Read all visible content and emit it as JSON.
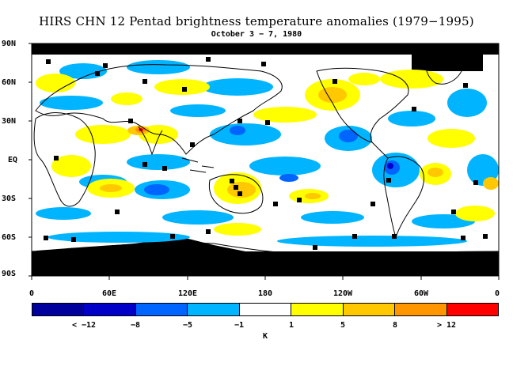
{
  "title": "HIRS CHN 12 Pentad brightness temperature anomalies (1979−1995)",
  "subtitle": "October 3 − 7, 1980",
  "y_labels": [
    "90N",
    "60N",
    "30N",
    "EQ",
    "30S",
    "60S",
    "90S"
  ],
  "x_labels": [
    "0",
    "60E",
    "120E",
    "180",
    "120W",
    "60W",
    "0"
  ],
  "colorbar": {
    "colors": [
      "#00009c",
      "#0000c8",
      "#0064ff",
      "#00b4ff",
      "#ffffff",
      "#ffff00",
      "#ffc800",
      "#ff9600",
      "#ff0000"
    ],
    "labels": [
      "< −12",
      "−8",
      "−5",
      "−1",
      "1",
      "5",
      "8",
      "> 12"
    ],
    "unit": "K"
  },
  "legend_colors": {
    "missing": "#000000",
    "land_outline": "#000000"
  }
}
